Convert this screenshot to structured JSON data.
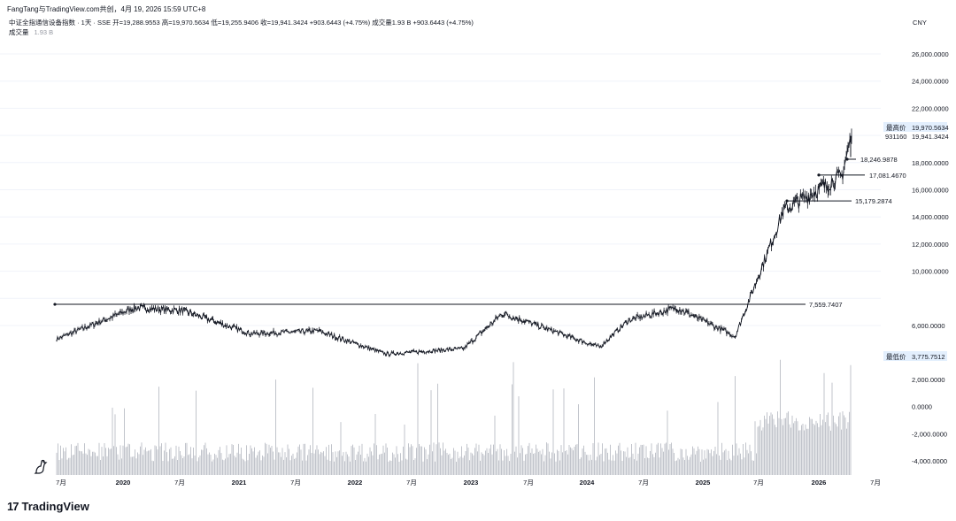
{
  "header": {
    "share_text": "FangTang与TradingView.com共创，4月 19, 2026 15:59 UTC+8",
    "symbol_line": "中证全指通信设备指数 · 1天 · SSE  开=19,288.9553  高=19,970.5634  低=19,255.9406  收=19,941.3424  +903.6443 (+4.75%)  成交量1.93 B  +903.6443 (+4.75%)",
    "volume_label": "成交量",
    "volume_value": "1.93 B",
    "currency": "CNY"
  },
  "price_scale": {
    "ticks": [
      "26,000.0000",
      "24,000.0000",
      "22,000.0000",
      "18,000.0000",
      "16,000.0000",
      "14,000.0000",
      "12,000.0000",
      "10,000.0000",
      "6,000.0000"
    ],
    "high_label": "最高价",
    "high_value": "19,970.5634",
    "last_countdown": "931160",
    "last_value": "19,941.3424",
    "low_label": "最低价",
    "low_value": "3,775.7512"
  },
  "volume_scale": {
    "ticks": [
      "2,000.0000",
      "0.0000",
      "-2,000.0000",
      "-4,000.0000"
    ]
  },
  "time_axis": {
    "labels": [
      "7月",
      "2020",
      "7月",
      "2021",
      "7月",
      "2022",
      "7月",
      "2023",
      "7月",
      "2024",
      "7月",
      "2025",
      "7月",
      "2026",
      "7月"
    ]
  },
  "chart_data": {
    "type": "candlestick",
    "high_marker": 19970.5634,
    "low_marker": 3775.7512,
    "last": 19941.3424,
    "horizontal_lines": [
      {
        "value": 7559.7407,
        "label": "7,559.7407"
      },
      {
        "value": 15179.2874,
        "label": "15,179.2874"
      },
      {
        "value": 17081.467,
        "label": "17,081.4670"
      },
      {
        "value": 18246.9878,
        "label": "18,246.9878"
      }
    ],
    "key_points": [
      {
        "date": "2019-06",
        "close": 5000
      },
      {
        "date": "2020-02",
        "close": 7300
      },
      {
        "date": "2020-07",
        "close": 7100
      },
      {
        "date": "2021-02",
        "close": 5400
      },
      {
        "date": "2021-09",
        "close": 5600
      },
      {
        "date": "2022-04",
        "close": 3900
      },
      {
        "date": "2022-12",
        "close": 4300
      },
      {
        "date": "2023-04",
        "close": 6900
      },
      {
        "date": "2024-02",
        "close": 4400
      },
      {
        "date": "2024-05",
        "close": 6400
      },
      {
        "date": "2024-10",
        "close": 7300
      },
      {
        "date": "2025-04",
        "close": 5200
      },
      {
        "date": "2025-09",
        "close": 14500
      },
      {
        "date": "2026-03",
        "close": 17000
      },
      {
        "date": "2026-04",
        "close": 19941.3424
      }
    ]
  },
  "brand": {
    "name": "TradingView",
    "logo_text": "17"
  }
}
